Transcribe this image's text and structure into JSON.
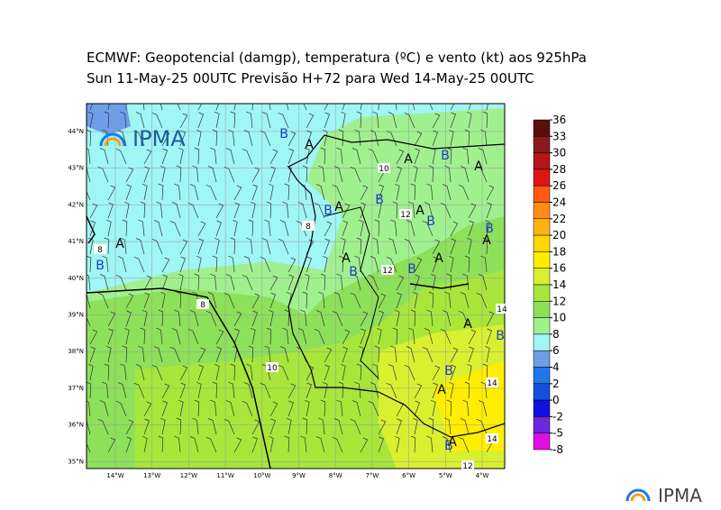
{
  "header": {
    "title": "ECMWF:  Geopotencial (damgp), temperatura (ºC) e vento (kt) aos 925hPa",
    "subtitle": "Sun 11-May-25 00UTC Previsão H+72 para Wed 14-May-25 00UTC"
  },
  "map": {
    "lat_labels": [
      "44°N",
      "43°N",
      "42°N",
      "41°N",
      "40°N",
      "39°N",
      "38°N",
      "37°N",
      "36°N",
      "35°N"
    ],
    "lon_labels": [
      "14°W",
      "13°W",
      "12°W",
      "11°W",
      "10°W",
      "9°W",
      "8°W",
      "7°W",
      "6°W",
      "5°W",
      "4°W"
    ],
    "pressure_centers": [
      "B",
      "A",
      "A",
      "B",
      "A",
      "B",
      "B",
      "A",
      "A",
      "B",
      "B",
      "A",
      "A",
      "B",
      "A",
      "B",
      "B",
      "A",
      "A",
      "B",
      "B",
      "A",
      "A",
      "B"
    ],
    "contour_labels": [
      "10",
      "12",
      "8",
      "12",
      "8",
      "8",
      "10",
      "14",
      "14",
      "14",
      "12"
    ],
    "logo": "IPMA"
  },
  "colorbar": {
    "ticks": [
      36,
      33,
      30,
      28,
      26,
      24,
      22,
      20,
      18,
      16,
      14,
      12,
      10,
      8,
      6,
      4,
      2,
      0,
      -2,
      -5,
      -8
    ],
    "colors": [
      "#5a0f0a",
      "#8b1a1a",
      "#b31616",
      "#e01515",
      "#ff5a10",
      "#ff8c14",
      "#ffb414",
      "#ffd700",
      "#ffee00",
      "#d9f030",
      "#a8e63c",
      "#8de05a",
      "#a0f090",
      "#a0f5f5",
      "#6e9ee8",
      "#1e78e6",
      "#1450dc",
      "#1010e0",
      "#6e28dc",
      "#e010e0"
    ]
  },
  "footer": {
    "logo": "IPMA"
  }
}
